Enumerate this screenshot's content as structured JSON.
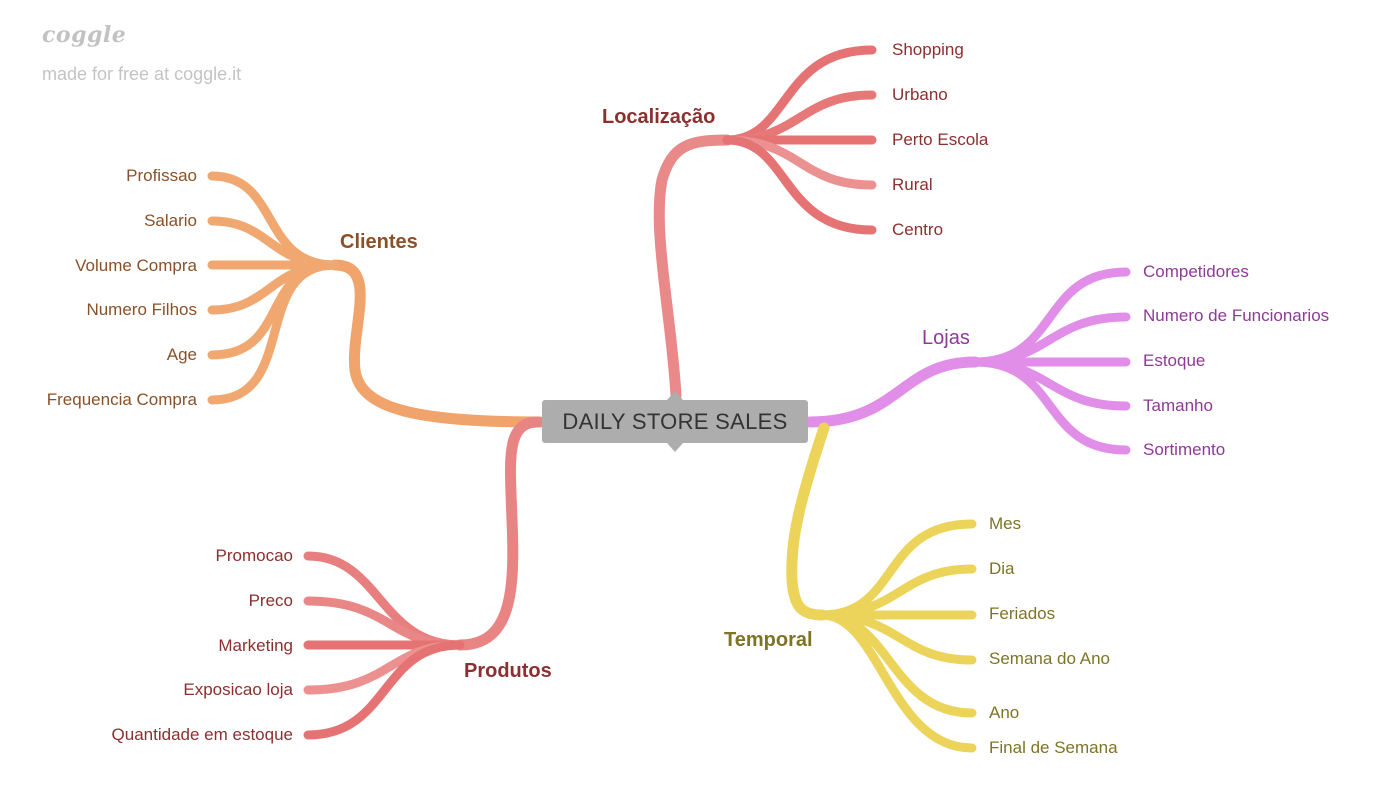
{
  "watermark": {
    "logo": "coggle",
    "text": "made for free at coggle.it"
  },
  "center": {
    "label": "DAILY STORE SALES"
  },
  "branches": {
    "localizacao": {
      "label": "Localização",
      "color": "#e07272",
      "text_color": "#8c2f2f",
      "children": [
        "Shopping",
        "Urbano",
        "Perto Escola",
        "Rural",
        "Centro"
      ]
    },
    "clientes": {
      "label": "Clientes",
      "color": "#f0a46c",
      "text_color": "#8a5128",
      "children": [
        "Profissao",
        "Salario",
        "Volume Compra",
        "Numero Filhos",
        "Age",
        "Frequencia Compra"
      ]
    },
    "lojas": {
      "label": "Lojas",
      "color": "#e08ee8",
      "text_color": "#8e3a96",
      "children": [
        "Competidores",
        "Numero de Funcionarios",
        "Estoque",
        "Tamanho",
        "Sortimento"
      ]
    },
    "temporal": {
      "label": "Temporal",
      "color": "#ecd45a",
      "text_color": "#7e7426",
      "children": [
        "Mes",
        "Dia",
        "Feriados",
        "Semana do Ano",
        "Ano",
        "Final de Semana"
      ]
    },
    "produtos": {
      "label": "Produtos",
      "color": "#e88080",
      "text_color": "#8c2f2f",
      "children": [
        "Promocao",
        "Preco",
        "Marketing",
        "Exposicao loja",
        "Quantidade em estoque"
      ]
    }
  }
}
